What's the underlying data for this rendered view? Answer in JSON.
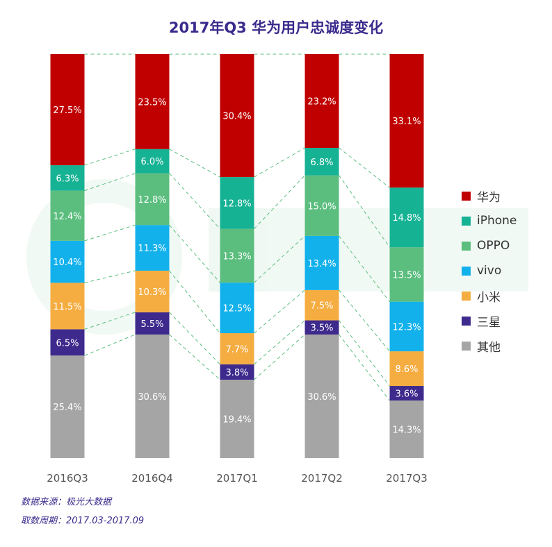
{
  "chart_data": {
    "type": "bar",
    "stacked": true,
    "normalized": true,
    "title": "2017年Q3 华为用户忠诚度变化",
    "xlabel": "",
    "ylabel": "",
    "ylim": [
      0,
      100
    ],
    "categories": [
      "2016Q3",
      "2016Q4",
      "2017Q1",
      "2017Q2",
      "2017Q3"
    ],
    "series": [
      {
        "name": "其他",
        "color": "#a5a5a5",
        "values": [
          25.4,
          30.6,
          19.4,
          30.6,
          14.3
        ],
        "labels": [
          "25.4%",
          "30.6%",
          "19.4%",
          "30.6%",
          "14.3%"
        ]
      },
      {
        "name": "三星",
        "color": "#3d2a8c",
        "values": [
          6.5,
          5.5,
          3.8,
          3.5,
          3.6
        ],
        "labels": [
          "6.5%",
          "5.5%",
          "3.8%",
          "3.5%",
          "3.6%"
        ]
      },
      {
        "name": "小米",
        "color": "#f5ad42",
        "values": [
          11.5,
          10.3,
          7.7,
          7.5,
          8.6
        ],
        "labels": [
          "11.5%",
          "10.3%",
          "7.7%",
          "7.5%",
          "8.6%"
        ]
      },
      {
        "name": "vivo",
        "color": "#12b1ec",
        "values": [
          10.4,
          11.3,
          12.5,
          13.4,
          12.3
        ],
        "labels": [
          "10.4%",
          "11.3%",
          "12.5%",
          "13.4%",
          "12.3%"
        ]
      },
      {
        "name": "OPPO",
        "color": "#5bbe7e",
        "values": [
          12.4,
          12.8,
          13.3,
          15.0,
          13.5
        ],
        "labels": [
          "12.4%",
          "12.8%",
          "13.3%",
          "15.0%",
          "13.5%"
        ]
      },
      {
        "name": "iPhone",
        "color": "#16b294",
        "values": [
          6.3,
          6.0,
          12.8,
          6.8,
          14.8
        ],
        "labels": [
          "6.3%",
          "6.0%",
          "12.8%",
          "6.8%",
          "14.8%"
        ]
      },
      {
        "name": "华为",
        "color": "#c00000",
        "values": [
          27.5,
          23.5,
          30.4,
          23.2,
          33.1
        ],
        "labels": [
          "27.5%",
          "23.5%",
          "30.4%",
          "23.2%",
          "33.1%"
        ]
      }
    ],
    "legend_order": [
      "华为",
      "iPhone",
      "OPPO",
      "vivo",
      "小米",
      "三星",
      "其他"
    ],
    "legend_position": "right",
    "connector_lines": "dashed",
    "connector_color": "#5bbe7e"
  },
  "source": {
    "data_source": "数据来源：极光大数据",
    "period": "取数周期：2017.03-2017.09"
  }
}
